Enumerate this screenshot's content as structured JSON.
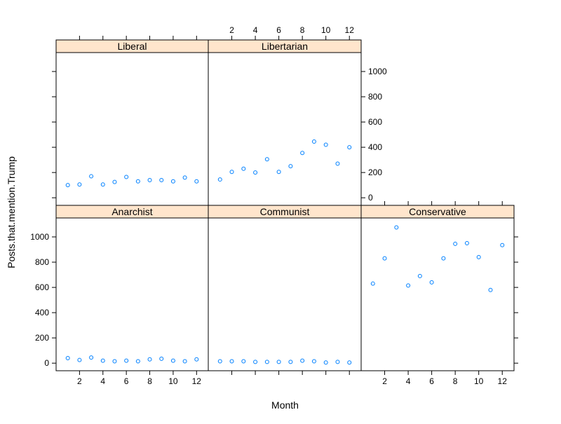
{
  "chart_data": {
    "type": "scatter",
    "xlabel": "Month",
    "ylabel": "Posts.that.mention.Trump",
    "xlim": [
      0,
      13
    ],
    "ylim": [
      -60,
      1150
    ],
    "x_ticks": [
      2,
      4,
      6,
      8,
      10,
      12
    ],
    "y_ticks": [
      0,
      200,
      400,
      600,
      800,
      1000
    ],
    "x": [
      1,
      2,
      3,
      4,
      5,
      6,
      7,
      8,
      9,
      10,
      11,
      12
    ],
    "marker_color": "#0080ff",
    "strip_color": "#ffe5cc",
    "panels": [
      {
        "name": "Liberal",
        "values": [
          100,
          105,
          170,
          105,
          125,
          165,
          130,
          140,
          140,
          130,
          160,
          130
        ]
      },
      {
        "name": "Libertarian",
        "values": [
          145,
          205,
          230,
          200,
          305,
          205,
          250,
          355,
          445,
          420,
          270,
          400
        ]
      },
      {
        "name": "Anarchist",
        "values": [
          40,
          25,
          45,
          20,
          15,
          20,
          15,
          30,
          35,
          20,
          15,
          30
        ]
      },
      {
        "name": "Communist",
        "values": [
          15,
          15,
          15,
          10,
          10,
          10,
          10,
          20,
          15,
          5,
          10,
          5
        ]
      },
      {
        "name": "Conservative",
        "values": [
          630,
          830,
          1075,
          615,
          690,
          640,
          830,
          945,
          950,
          840,
          580,
          935
        ]
      }
    ]
  }
}
